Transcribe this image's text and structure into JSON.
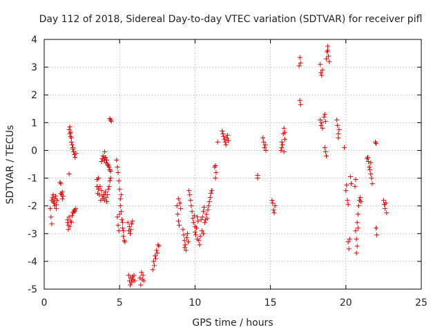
{
  "chart_data": {
    "type": "scatter",
    "title": "Day 112 of 2018, Sidereal Day-to-day VTEC variation (SDTVAR) for receiver pifl",
    "xlabel": "GPS time / hours",
    "ylabel": "SDTVAR / TECUs",
    "xlim": [
      0,
      25
    ],
    "ylim": [
      -5,
      4
    ],
    "xticks": [
      0,
      5,
      10,
      15,
      20,
      25
    ],
    "yticks": [
      -5,
      -4,
      -3,
      -2,
      -1,
      0,
      1,
      2,
      3,
      4
    ],
    "grid": true,
    "marker": "plus",
    "color": "#e00000",
    "series": [
      {
        "name": "pifl",
        "points": [
          [
            0.4,
            -2.1
          ],
          [
            0.45,
            -2.4
          ],
          [
            0.5,
            -2.65
          ],
          [
            0.5,
            -1.8
          ],
          [
            0.55,
            -1.7
          ],
          [
            0.6,
            -1.85
          ],
          [
            0.6,
            -1.6
          ],
          [
            0.65,
            -1.9
          ],
          [
            0.7,
            -1.75
          ],
          [
            0.7,
            -2.0
          ],
          [
            0.75,
            -1.65
          ],
          [
            0.8,
            -1.95
          ],
          [
            0.8,
            -2.1
          ],
          [
            0.85,
            -1.8
          ],
          [
            1.05,
            -1.15
          ],
          [
            1.1,
            -1.2
          ],
          [
            1.1,
            -1.55
          ],
          [
            1.15,
            -1.6
          ],
          [
            1.2,
            -1.75
          ],
          [
            1.2,
            -1.5
          ],
          [
            1.25,
            -1.65
          ],
          [
            1.55,
            -2.5
          ],
          [
            1.55,
            -2.6
          ],
          [
            1.6,
            -2.7
          ],
          [
            1.6,
            -2.85
          ],
          [
            1.65,
            -2.4
          ],
          [
            1.65,
            -0.85
          ],
          [
            1.65,
            0.75
          ],
          [
            1.7,
            -2.75
          ],
          [
            1.7,
            0.6
          ],
          [
            1.7,
            0.85
          ],
          [
            1.75,
            -2.55
          ],
          [
            1.75,
            0.5
          ],
          [
            1.75,
            0.65
          ],
          [
            1.8,
            -2.6
          ],
          [
            1.8,
            0.3
          ],
          [
            1.8,
            0.45
          ],
          [
            1.85,
            -2.35
          ],
          [
            1.85,
            0.2
          ],
          [
            1.9,
            -2.25
          ],
          [
            1.9,
            0.05
          ],
          [
            1.9,
            0.1
          ],
          [
            1.95,
            -2.2
          ],
          [
            1.95,
            -0.05
          ],
          [
            2.0,
            -2.15
          ],
          [
            2.0,
            -0.15
          ],
          [
            2.05,
            -2.2
          ],
          [
            2.05,
            -0.25
          ],
          [
            2.1,
            -2.1
          ],
          [
            2.1,
            -0.1
          ],
          [
            3.5,
            -1.05
          ],
          [
            3.5,
            -1.3
          ],
          [
            3.55,
            -1.55
          ],
          [
            3.6,
            -1.0
          ],
          [
            3.6,
            -1.4
          ],
          [
            3.65,
            -1.6
          ],
          [
            3.7,
            -1.3
          ],
          [
            3.75,
            -1.8
          ],
          [
            3.8,
            -1.45
          ],
          [
            3.8,
            -0.4
          ],
          [
            3.85,
            -0.3
          ],
          [
            3.85,
            -1.65
          ],
          [
            3.9,
            -0.2
          ],
          [
            3.9,
            -1.75
          ],
          [
            3.95,
            -0.3
          ],
          [
            3.95,
            -1.6
          ],
          [
            4.0,
            -0.05
          ],
          [
            4.0,
            -0.35
          ],
          [
            4.0,
            -1.8
          ],
          [
            4.05,
            -0.25
          ],
          [
            4.05,
            -1.5
          ],
          [
            4.1,
            -0.45
          ],
          [
            4.1,
            -1.7
          ],
          [
            4.15,
            -0.35
          ],
          [
            4.15,
            -1.85
          ],
          [
            4.2,
            -0.5
          ],
          [
            4.2,
            -1.6
          ],
          [
            4.25,
            -0.55
          ],
          [
            4.25,
            -1.4
          ],
          [
            4.3,
            -0.6
          ],
          [
            4.3,
            -1.3
          ],
          [
            4.35,
            -0.7
          ],
          [
            4.35,
            -1.1
          ],
          [
            4.4,
            -0.75
          ],
          [
            4.4,
            -1.0
          ],
          [
            4.35,
            1.15
          ],
          [
            4.4,
            1.1
          ],
          [
            4.45,
            1.05
          ],
          [
            4.8,
            -0.35
          ],
          [
            4.85,
            -0.6
          ],
          [
            4.85,
            -2.4
          ],
          [
            4.9,
            -0.8
          ],
          [
            4.9,
            -2.7
          ],
          [
            4.95,
            -1.1
          ],
          [
            4.95,
            -2.9
          ],
          [
            5.0,
            -1.4
          ],
          [
            5.0,
            -2.3
          ],
          [
            5.05,
            -1.75
          ],
          [
            5.05,
            -2.0
          ],
          [
            5.1,
            -2.2
          ],
          [
            5.1,
            -1.6
          ],
          [
            5.15,
            -2.5
          ],
          [
            5.2,
            -2.8
          ],
          [
            5.2,
            -2.6
          ],
          [
            5.25,
            -3.1
          ],
          [
            5.25,
            -2.9
          ],
          [
            5.3,
            -3.25
          ],
          [
            5.35,
            -3.3
          ],
          [
            5.55,
            -2.6
          ],
          [
            5.6,
            -2.9
          ],
          [
            5.65,
            -2.75
          ],
          [
            5.7,
            -3.0
          ],
          [
            5.75,
            -2.85
          ],
          [
            5.8,
            -2.65
          ],
          [
            5.85,
            -2.55
          ],
          [
            5.6,
            -4.5
          ],
          [
            5.65,
            -4.7
          ],
          [
            5.7,
            -4.85
          ],
          [
            5.75,
            -4.6
          ],
          [
            5.8,
            -4.75
          ],
          [
            5.85,
            -4.55
          ],
          [
            5.9,
            -4.65
          ],
          [
            5.95,
            -4.5
          ],
          [
            6.0,
            -4.7
          ],
          [
            6.35,
            -4.6
          ],
          [
            6.4,
            -4.85
          ],
          [
            6.45,
            -4.4
          ],
          [
            6.5,
            -4.65
          ],
          [
            6.55,
            -4.5
          ],
          [
            6.6,
            -4.7
          ],
          [
            7.2,
            -4.3
          ],
          [
            7.25,
            -4.0
          ],
          [
            7.3,
            -4.15
          ],
          [
            7.35,
            -3.8
          ],
          [
            7.4,
            -3.9
          ],
          [
            7.45,
            -3.6
          ],
          [
            7.5,
            -3.7
          ],
          [
            7.55,
            -3.4
          ],
          [
            7.6,
            -3.45
          ],
          [
            8.8,
            -2.0
          ],
          [
            8.85,
            -2.3
          ],
          [
            8.9,
            -2.55
          ],
          [
            8.9,
            -1.75
          ],
          [
            8.95,
            -2.7
          ],
          [
            9.0,
            -1.9
          ],
          [
            9.05,
            -2.1
          ],
          [
            9.2,
            -2.85
          ],
          [
            9.25,
            -3.05
          ],
          [
            9.3,
            -3.25
          ],
          [
            9.3,
            -3.5
          ],
          [
            9.35,
            -3.4
          ],
          [
            9.4,
            -3.6
          ],
          [
            9.45,
            -3.15
          ],
          [
            9.5,
            -3.0
          ],
          [
            9.55,
            -3.3
          ],
          [
            9.6,
            -1.45
          ],
          [
            9.65,
            -1.6
          ],
          [
            9.7,
            -1.8
          ],
          [
            9.75,
            -2.0
          ],
          [
            9.8,
            -2.2
          ],
          [
            9.85,
            -2.45
          ],
          [
            9.9,
            -2.6
          ],
          [
            9.95,
            -2.35
          ],
          [
            10.0,
            -2.75
          ],
          [
            10.0,
            -2.95
          ],
          [
            10.05,
            -3.05
          ],
          [
            10.1,
            -2.8
          ],
          [
            10.15,
            -3.2
          ],
          [
            10.15,
            -2.4
          ],
          [
            10.2,
            -2.55
          ],
          [
            10.25,
            -3.25
          ],
          [
            10.3,
            -3.4
          ],
          [
            10.35,
            -3.1
          ],
          [
            10.4,
            -2.5
          ],
          [
            10.45,
            -2.9
          ],
          [
            10.5,
            -2.4
          ],
          [
            10.55,
            -2.2
          ],
          [
            10.55,
            -3.0
          ],
          [
            10.6,
            -2.05
          ],
          [
            10.65,
            -2.6
          ],
          [
            10.7,
            -2.5
          ],
          [
            10.75,
            -2.3
          ],
          [
            10.8,
            -2.45
          ],
          [
            10.85,
            -2.15
          ],
          [
            10.9,
            -2.0
          ],
          [
            10.95,
            -1.85
          ],
          [
            11.0,
            -1.7
          ],
          [
            11.05,
            -1.55
          ],
          [
            11.1,
            -1.45
          ],
          [
            11.3,
            -0.6
          ],
          [
            11.35,
            -0.55
          ],
          [
            11.4,
            -0.8
          ],
          [
            11.35,
            -1.0
          ],
          [
            11.5,
            0.3
          ],
          [
            11.8,
            0.7
          ],
          [
            11.85,
            0.6
          ],
          [
            11.9,
            0.5
          ],
          [
            11.95,
            0.4
          ],
          [
            12.0,
            0.3
          ],
          [
            12.05,
            0.2
          ],
          [
            12.1,
            0.45
          ],
          [
            12.15,
            0.55
          ],
          [
            12.2,
            0.35
          ],
          [
            14.15,
            -0.9
          ],
          [
            14.15,
            -1.0
          ],
          [
            14.5,
            0.45
          ],
          [
            14.55,
            0.3
          ],
          [
            14.6,
            0.1
          ],
          [
            14.65,
            0.2
          ],
          [
            14.7,
            0.0
          ],
          [
            15.1,
            -1.8
          ],
          [
            15.15,
            -1.9
          ],
          [
            15.2,
            -2.15
          ],
          [
            15.25,
            -2.25
          ],
          [
            15.3,
            -2.0
          ],
          [
            15.7,
            0.0
          ],
          [
            15.75,
            0.3
          ],
          [
            15.75,
            0.1
          ],
          [
            15.8,
            0.2
          ],
          [
            15.85,
            0.6
          ],
          [
            15.9,
            0.8
          ],
          [
            15.95,
            0.65
          ],
          [
            15.9,
            -0.05
          ],
          [
            15.95,
            0.4
          ],
          [
            16.9,
            3.05
          ],
          [
            16.95,
            3.35
          ],
          [
            17.0,
            3.15
          ],
          [
            16.95,
            1.8
          ],
          [
            17.0,
            1.65
          ],
          [
            18.3,
            3.1
          ],
          [
            18.35,
            2.8
          ],
          [
            18.4,
            2.7
          ],
          [
            18.45,
            2.9
          ],
          [
            18.3,
            1.1
          ],
          [
            18.35,
            0.9
          ],
          [
            18.4,
            1.0
          ],
          [
            18.45,
            0.8
          ],
          [
            18.55,
            1.2
          ],
          [
            18.6,
            1.3
          ],
          [
            18.65,
            1.05
          ],
          [
            18.7,
            3.3
          ],
          [
            18.75,
            3.55
          ],
          [
            18.8,
            3.6
          ],
          [
            18.8,
            3.75
          ],
          [
            18.85,
            3.4
          ],
          [
            18.9,
            3.2
          ],
          [
            18.6,
            0.1
          ],
          [
            18.65,
            -0.05
          ],
          [
            18.7,
            -0.2
          ],
          [
            19.4,
            1.1
          ],
          [
            19.45,
            0.9
          ],
          [
            19.5,
            0.6
          ],
          [
            19.5,
            0.45
          ],
          [
            19.55,
            0.75
          ],
          [
            19.9,
            0.1
          ],
          [
            20.0,
            -1.45
          ],
          [
            20.05,
            -1.25
          ],
          [
            20.1,
            -1.8
          ],
          [
            20.15,
            -1.95
          ],
          [
            20.15,
            -3.3
          ],
          [
            20.2,
            -3.55
          ],
          [
            20.25,
            -3.2
          ],
          [
            20.3,
            -0.95
          ],
          [
            20.35,
            -1.2
          ],
          [
            20.6,
            -1.3
          ],
          [
            20.65,
            -1.05
          ],
          [
            20.65,
            -2.9
          ],
          [
            20.7,
            -3.2
          ],
          [
            20.7,
            -3.7
          ],
          [
            20.75,
            -3.45
          ],
          [
            20.75,
            -2.6
          ],
          [
            20.8,
            -2.8
          ],
          [
            20.8,
            -2.3
          ],
          [
            20.85,
            -2.0
          ],
          [
            20.9,
            -1.8
          ],
          [
            20.95,
            -1.7
          ],
          [
            21.0,
            -1.85
          ],
          [
            21.4,
            -0.3
          ],
          [
            21.45,
            -0.25
          ],
          [
            21.5,
            -0.4
          ],
          [
            21.55,
            -0.6
          ],
          [
            21.6,
            -0.7
          ],
          [
            21.65,
            -0.85
          ],
          [
            21.7,
            -1.0
          ],
          [
            21.75,
            -1.2
          ],
          [
            21.65,
            -0.45
          ],
          [
            21.95,
            0.3
          ],
          [
            22.0,
            0.25
          ],
          [
            22.0,
            -2.8
          ],
          [
            22.05,
            -3.05
          ],
          [
            22.5,
            -1.8
          ],
          [
            22.55,
            -1.95
          ],
          [
            22.6,
            -2.1
          ],
          [
            22.65,
            -1.9
          ],
          [
            22.7,
            -2.25
          ]
        ]
      }
    ]
  }
}
